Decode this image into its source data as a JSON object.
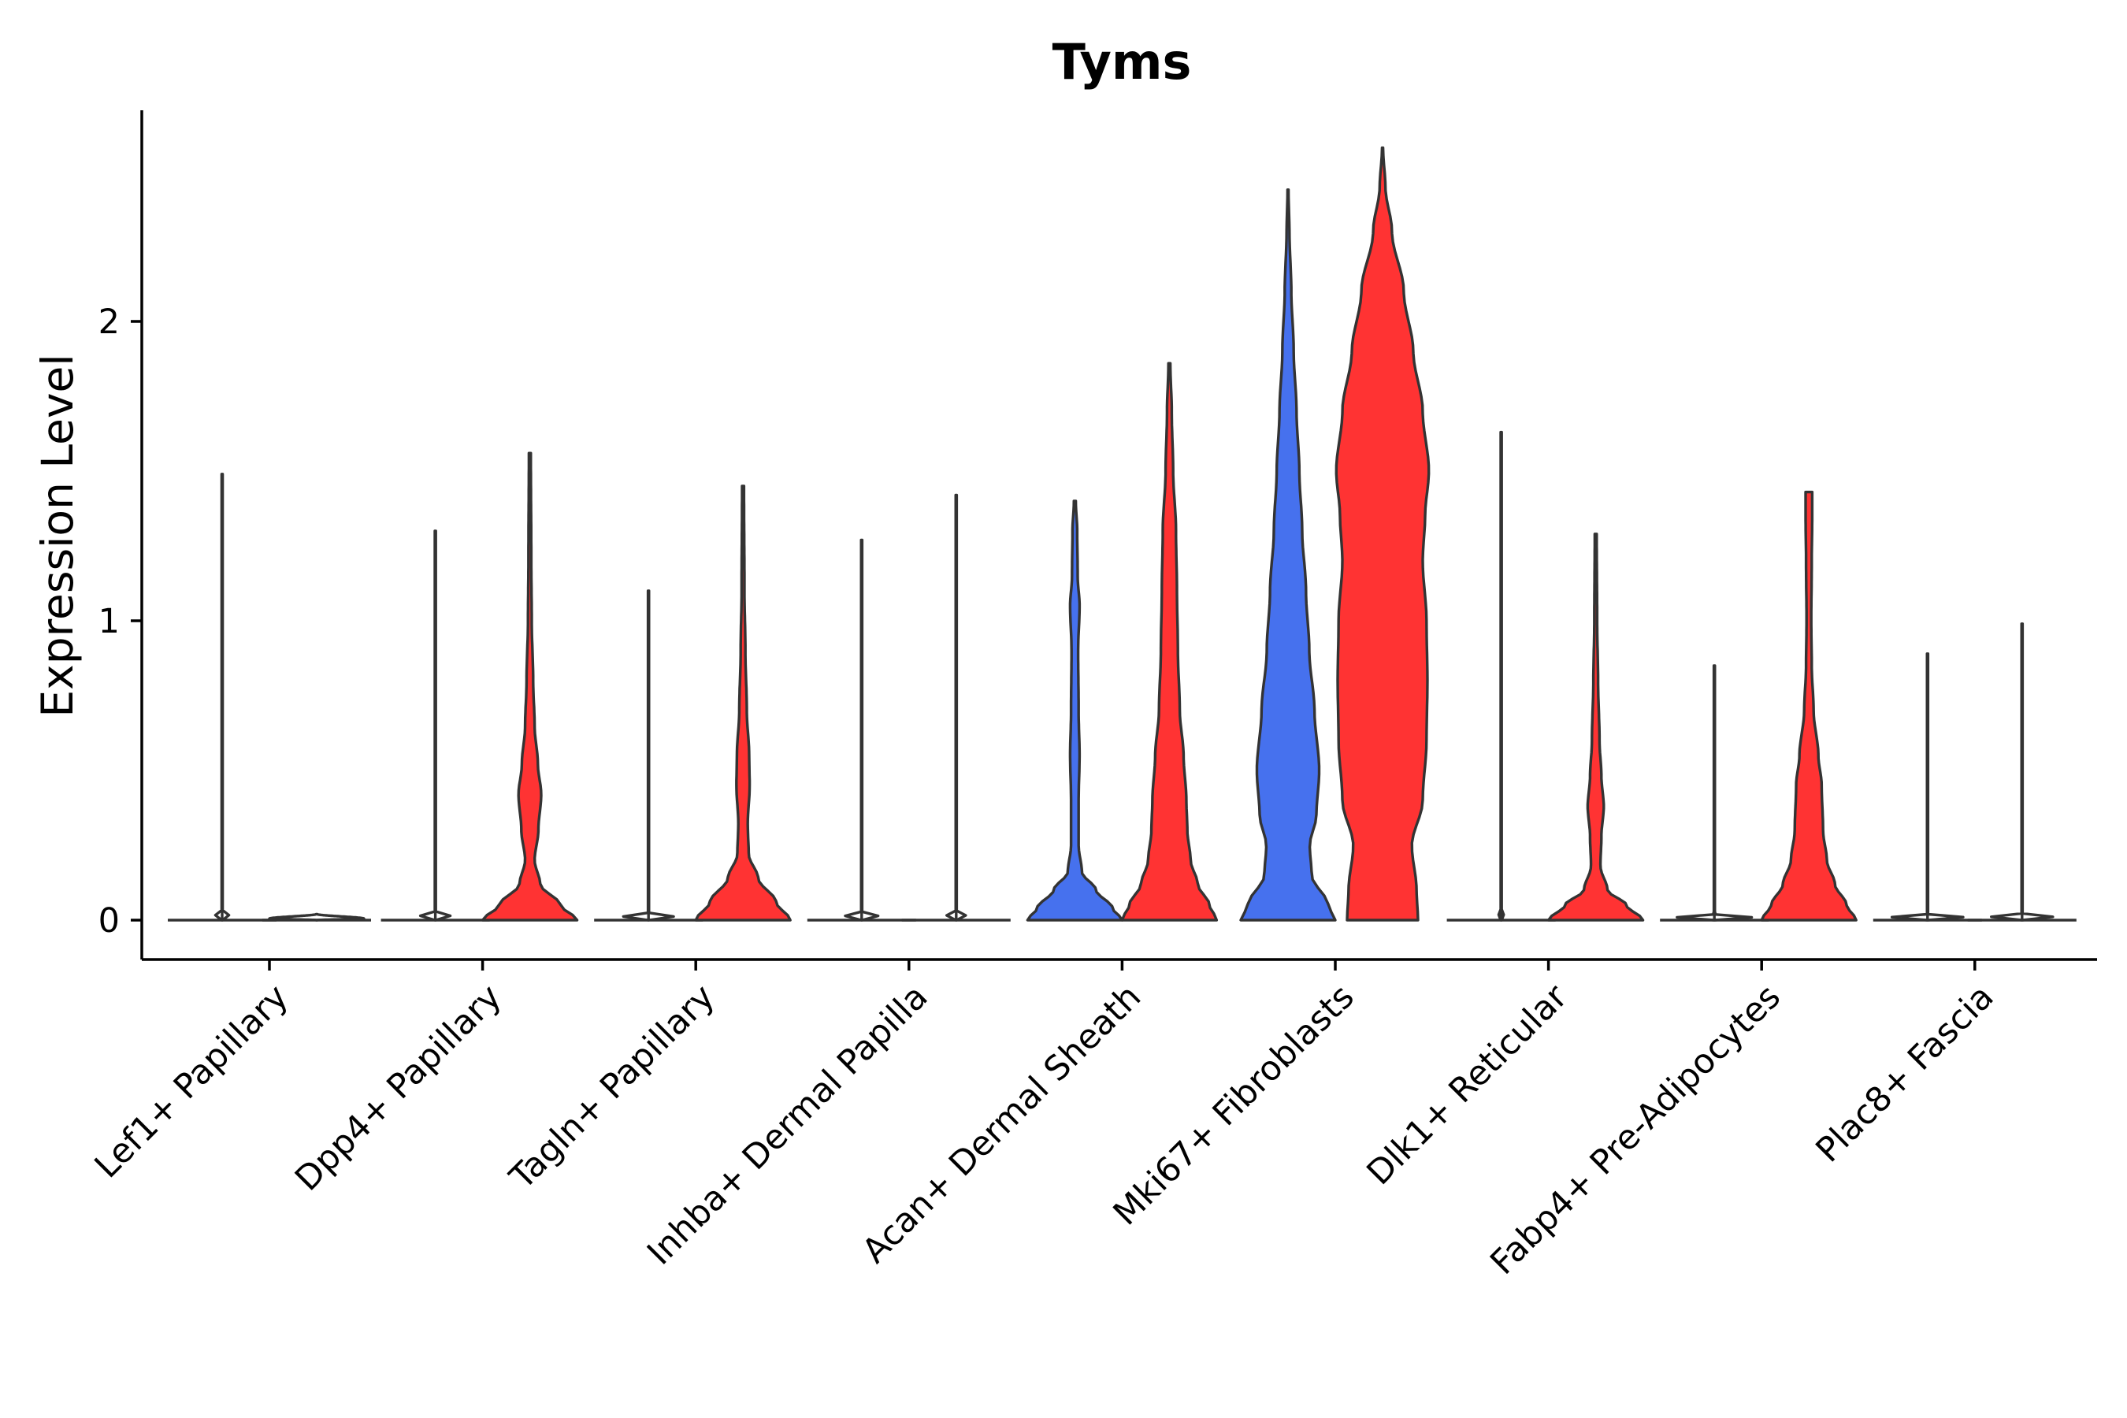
{
  "chart_data": {
    "type": "violin",
    "title": "Tyms",
    "xlabel": "",
    "ylabel": "Expression Level",
    "ylim": [
      -0.13,
      2.7
    ],
    "yticks": [
      0,
      1,
      2
    ],
    "ytick_labels": [
      "0",
      "1",
      "2"
    ],
    "categories": [
      "Lef1+ Papillary",
      "Dpp4+ Papillary",
      "Tagln+ Papillary",
      "Inhba+ Dermal Papilla",
      "Acan+ Dermal Sheath",
      "Mki67+ Fibroblasts",
      "Dlk1+ Reticular",
      "Fabp4+ Pre-Adipocytes",
      "Plac8+ Fascia"
    ],
    "groups": [
      {
        "name": "group-1",
        "color": "#4671EE"
      },
      {
        "name": "group-2",
        "color": "#FF3333"
      }
    ],
    "violins": [
      {
        "category": 0,
        "group": 0,
        "max": 1.49,
        "profile": [
          [
            0,
            0.01
          ],
          [
            0.005,
            1.0
          ],
          [
            0.02,
            0.01
          ],
          [
            1.49,
            0.01
          ]
        ]
      },
      {
        "category": 0,
        "group": 1,
        "max": 0.0,
        "profile": [
          [
            0,
            0.01
          ],
          [
            0.005,
            1.0
          ],
          [
            0.02,
            0.01
          ]
        ]
      },
      {
        "category": 1,
        "group": 0,
        "max": 1.3,
        "profile": [
          [
            0,
            0.01
          ],
          [
            0.005,
            1.0
          ],
          [
            0.02,
            0.01
          ],
          [
            1.3,
            0.01
          ]
        ]
      },
      {
        "category": 1,
        "group": 1,
        "max": 1.56,
        "profile": [
          [
            0,
            1.0
          ],
          [
            0.05,
            0.65
          ],
          [
            0.12,
            0.22
          ],
          [
            0.2,
            0.1
          ],
          [
            0.3,
            0.18
          ],
          [
            0.42,
            0.24
          ],
          [
            0.52,
            0.17
          ],
          [
            0.65,
            0.1
          ],
          [
            0.8,
            0.07
          ],
          [
            1.0,
            0.04
          ],
          [
            1.2,
            0.03
          ],
          [
            1.56,
            0.02
          ]
        ]
      },
      {
        "category": 2,
        "group": 0,
        "max": 1.1,
        "profile": [
          [
            0,
            0.01
          ],
          [
            0.005,
            1.0
          ],
          [
            0.02,
            0.01
          ],
          [
            1.1,
            0.01
          ]
        ]
      },
      {
        "category": 2,
        "group": 1,
        "max": 1.45,
        "profile": [
          [
            0,
            1.0
          ],
          [
            0.06,
            0.7
          ],
          [
            0.14,
            0.32
          ],
          [
            0.22,
            0.12
          ],
          [
            0.32,
            0.1
          ],
          [
            0.45,
            0.14
          ],
          [
            0.55,
            0.13
          ],
          [
            0.7,
            0.08
          ],
          [
            0.9,
            0.05
          ],
          [
            1.1,
            0.03
          ],
          [
            1.45,
            0.02
          ]
        ]
      },
      {
        "category": 3,
        "group": 0,
        "max": 1.27,
        "profile": [
          [
            0,
            0.01
          ],
          [
            0.005,
            1.0
          ],
          [
            0.02,
            0.01
          ],
          [
            1.27,
            0.01
          ]
        ]
      },
      {
        "category": 3,
        "group": 1,
        "max": 1.42,
        "profile": [
          [
            0,
            0.01
          ],
          [
            0.005,
            1.0
          ],
          [
            0.02,
            0.01
          ],
          [
            1.42,
            0.01
          ]
        ]
      },
      {
        "category": 4,
        "group": 0,
        "max": 1.4,
        "profile": [
          [
            0,
            1.0
          ],
          [
            0.04,
            0.8
          ],
          [
            0.1,
            0.45
          ],
          [
            0.16,
            0.15
          ],
          [
            0.25,
            0.08
          ],
          [
            0.4,
            0.08
          ],
          [
            0.55,
            0.1
          ],
          [
            0.7,
            0.08
          ],
          [
            0.9,
            0.07
          ],
          [
            1.05,
            0.1
          ],
          [
            1.15,
            0.06
          ],
          [
            1.3,
            0.05
          ],
          [
            1.4,
            0.02
          ]
        ]
      },
      {
        "category": 4,
        "group": 1,
        "max": 1.86,
        "profile": [
          [
            0,
            1.0
          ],
          [
            0.05,
            0.85
          ],
          [
            0.12,
            0.6
          ],
          [
            0.2,
            0.45
          ],
          [
            0.3,
            0.38
          ],
          [
            0.4,
            0.36
          ],
          [
            0.55,
            0.3
          ],
          [
            0.7,
            0.22
          ],
          [
            0.9,
            0.18
          ],
          [
            1.1,
            0.16
          ],
          [
            1.3,
            0.14
          ],
          [
            1.5,
            0.08
          ],
          [
            1.7,
            0.05
          ],
          [
            1.86,
            0.02
          ]
        ]
      },
      {
        "category": 5,
        "group": 0,
        "max": 2.44,
        "profile": [
          [
            0,
            1.0
          ],
          [
            0.05,
            0.85
          ],
          [
            0.15,
            0.5
          ],
          [
            0.25,
            0.46
          ],
          [
            0.35,
            0.6
          ],
          [
            0.5,
            0.66
          ],
          [
            0.7,
            0.56
          ],
          [
            0.9,
            0.45
          ],
          [
            1.1,
            0.38
          ],
          [
            1.3,
            0.3
          ],
          [
            1.5,
            0.24
          ],
          [
            1.7,
            0.18
          ],
          [
            1.9,
            0.12
          ],
          [
            2.1,
            0.07
          ],
          [
            2.3,
            0.03
          ],
          [
            2.44,
            0.01
          ]
        ]
      },
      {
        "category": 5,
        "group": 1,
        "max": 2.58,
        "profile": [
          [
            0,
            0.75
          ],
          [
            0.1,
            0.72
          ],
          [
            0.25,
            0.62
          ],
          [
            0.4,
            0.85
          ],
          [
            0.6,
            0.93
          ],
          [
            0.8,
            0.95
          ],
          [
            1.0,
            0.93
          ],
          [
            1.2,
            0.85
          ],
          [
            1.35,
            0.9
          ],
          [
            1.5,
            0.98
          ],
          [
            1.7,
            0.85
          ],
          [
            1.9,
            0.65
          ],
          [
            2.1,
            0.45
          ],
          [
            2.3,
            0.2
          ],
          [
            2.45,
            0.06
          ],
          [
            2.58,
            0.01
          ]
        ]
      },
      {
        "category": 6,
        "group": 0,
        "max": 1.63,
        "profile": [
          [
            0,
            0.01
          ],
          [
            0.005,
            1.0
          ],
          [
            0.02,
            0.01
          ],
          [
            1.63,
            0.01
          ]
        ]
      },
      {
        "category": 6,
        "group": 1,
        "max": 1.29,
        "profile": [
          [
            0,
            1.0
          ],
          [
            0.05,
            0.65
          ],
          [
            0.1,
            0.25
          ],
          [
            0.18,
            0.1
          ],
          [
            0.28,
            0.12
          ],
          [
            0.38,
            0.17
          ],
          [
            0.48,
            0.12
          ],
          [
            0.6,
            0.08
          ],
          [
            0.8,
            0.05
          ],
          [
            1.0,
            0.03
          ],
          [
            1.29,
            0.02
          ]
        ]
      },
      {
        "category": 7,
        "group": 0,
        "max": 0.85,
        "profile": [
          [
            0,
            0.01
          ],
          [
            0.005,
            1.0
          ],
          [
            0.02,
            0.01
          ],
          [
            0.85,
            0.01
          ]
        ]
      },
      {
        "category": 7,
        "group": 1,
        "max": 1.43,
        "profile": [
          [
            0,
            1.0
          ],
          [
            0.05,
            0.8
          ],
          [
            0.12,
            0.55
          ],
          [
            0.2,
            0.38
          ],
          [
            0.3,
            0.3
          ],
          [
            0.45,
            0.27
          ],
          [
            0.55,
            0.2
          ],
          [
            0.7,
            0.1
          ],
          [
            0.85,
            0.06
          ],
          [
            1.0,
            0.05
          ],
          [
            1.2,
            0.06
          ],
          [
            1.35,
            0.07
          ],
          [
            1.43,
            0.07
          ]
        ]
      },
      {
        "category": 8,
        "group": 0,
        "max": 0.89,
        "profile": [
          [
            0,
            0.01
          ],
          [
            0.005,
            1.0
          ],
          [
            0.02,
            0.01
          ],
          [
            0.89,
            0.01
          ]
        ]
      },
      {
        "category": 8,
        "group": 1,
        "max": 0.99,
        "profile": [
          [
            0,
            0.01
          ],
          [
            0.005,
            1.0
          ],
          [
            0.02,
            0.01
          ],
          [
            0.99,
            0.01
          ]
        ]
      }
    ]
  }
}
